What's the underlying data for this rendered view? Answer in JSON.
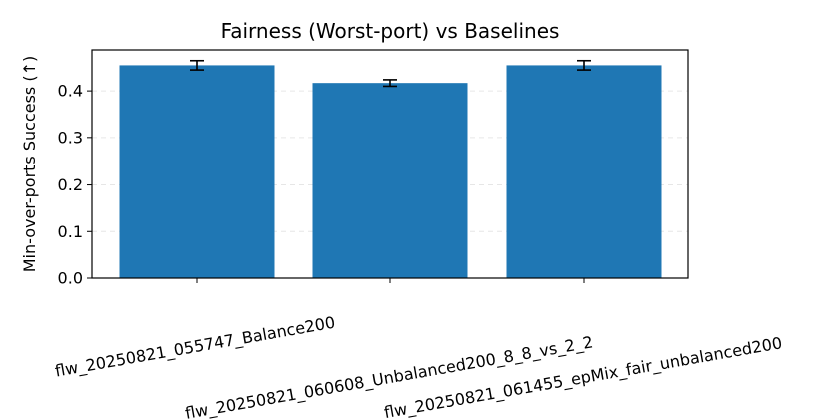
{
  "chart_data": {
    "type": "bar",
    "title": "Fairness (Worst-port) vs Baselines",
    "xlabel": "",
    "ylabel": "Min-over-ports Success (↑)",
    "categories": [
      "flw_20250821_055747_Balance200",
      "flw_20250821_060608_Unbalanced200_8_8_vs_2_2",
      "flw_20250821_061455_epMix_fair_unbalanced200"
    ],
    "values": [
      0.455,
      0.417,
      0.455
    ],
    "errors": [
      0.01,
      0.007,
      0.01
    ],
    "ylim": [
      0,
      0.488
    ],
    "yticks": [
      0.0,
      0.1,
      0.2,
      0.3,
      0.4
    ],
    "ytick_labels": [
      "0.0",
      "0.1",
      "0.2",
      "0.3",
      "0.4"
    ],
    "grid": "y-dashed",
    "bar_color": "#1f77b4",
    "grid_color": "#e6e6e6"
  }
}
